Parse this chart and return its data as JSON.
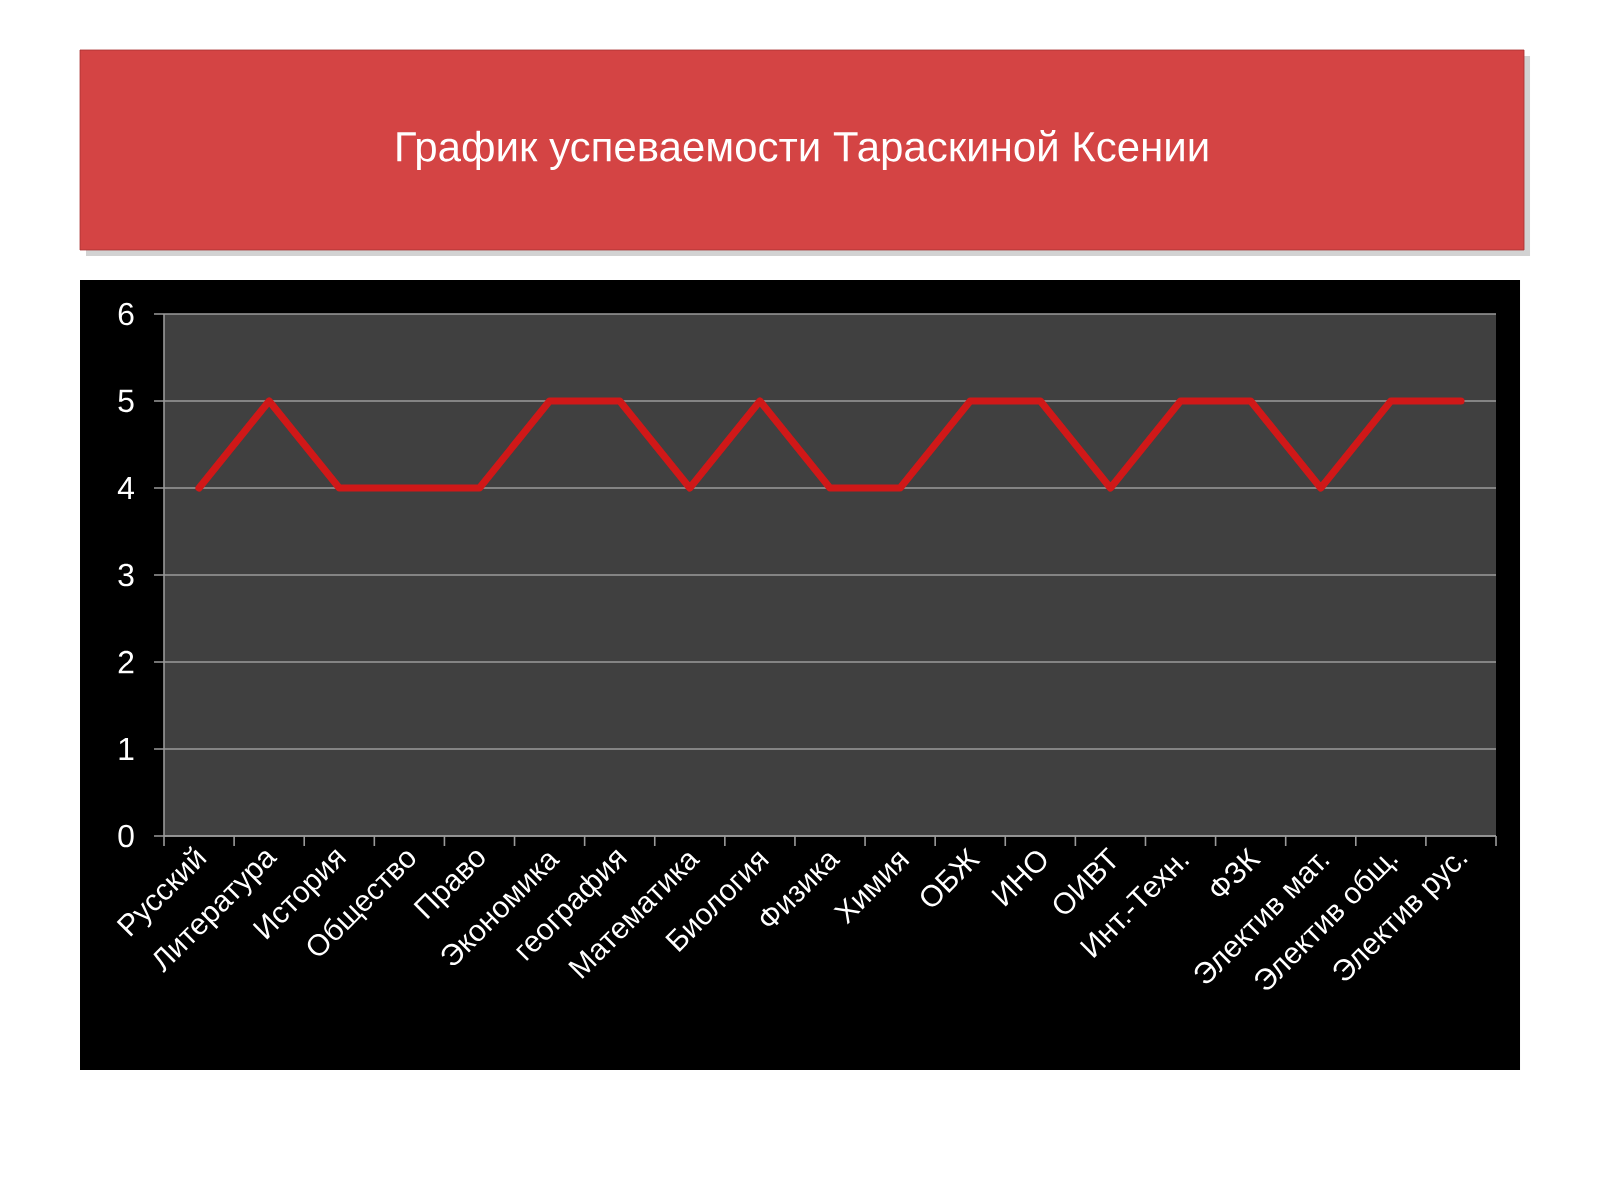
{
  "chart_data": {
    "type": "line",
    "title": "График успеваемости Тараскиной Ксении",
    "categories": [
      "Русский",
      "Литература",
      "История",
      "Общество",
      "Право",
      "Экономика",
      "география",
      "Математика",
      "Биология",
      "Физика",
      "Химия",
      "ОБЖ",
      "ИНО",
      "ОИВТ",
      "Инт.-Техн.",
      "ФЗК",
      "Электив мат.",
      "Электив общ.",
      "Электив рус."
    ],
    "series": [
      {
        "color": "#d01818",
        "values": [
          4,
          5,
          4,
          4,
          4,
          5,
          5,
          4,
          5,
          4,
          4,
          5,
          5,
          4,
          5,
          5,
          4,
          5,
          5
        ]
      }
    ],
    "ylim": [
      0,
      6
    ],
    "yticks": [
      0,
      1,
      2,
      3,
      4,
      5,
      6
    ],
    "grid": "y",
    "marker": "none",
    "line_style": "solid"
  }
}
